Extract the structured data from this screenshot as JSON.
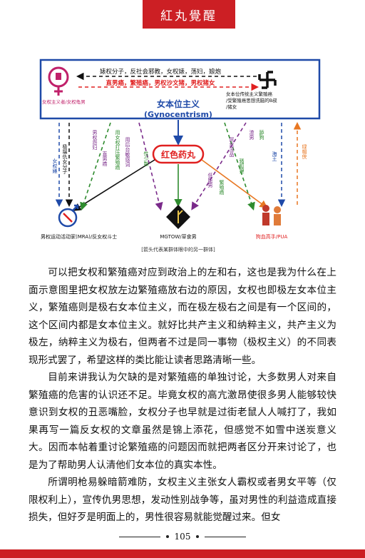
{
  "header": {
    "title": "紅丸覺醒"
  },
  "diagram": {
    "top_label": "婊权分子，反社会邪教，女权婊，荡妇，娘炮",
    "top_label2": "直男癌，繁殖癌，男权沙文猪，男权猪女",
    "left_tag": "女权主义者/女权龟男",
    "right_tag": [
      "女本位传统主义繁殖癌",
      "/受繁殖癌思想洗脑的B叔",
      "/猪女"
    ],
    "center_title": "女本位主义",
    "center_subtitle": "(Gynocentrism)",
    "red_pill": "红色药丸",
    "left_v1": "女权婊",
    "left_v2": "极端仇女分子",
    "left_v3": "男权怨妇",
    "left_v4": "直男癌",
    "mid_v1": "用女权打压繁殖癌",
    "mid_v2": "用后台敏感词",
    "mid_v3": "性少数",
    "right_v1": "低能男",
    "right_v2": "繁殖癌",
    "right_v3": "屌丝没品",
    "right_v4": "骚狐狸",
    "right_v5": "渣男",
    "right_v6": "舔狗",
    "far_right_v1": "海王",
    "far_right_v2": "绿帽侠",
    "node_left": "男权运动活动家(MRA)/反女权斗士",
    "node_mid": "MGTOW/草食男",
    "node_right": "狗血高手/PUA",
    "caption": "[箭头代表某群体眼中的另一群体]"
  },
  "paragraphs": [
    "可以把女权和繁殖癌对应到政治上的左和右，这也是我为什么在上面示意图里把女权放左边繁殖癌放右边的原因，女权也即极左女本位主义，繁殖癌则是极右女本位主义，而在极左极右之间是有一个区间的，这个区间内都是女本位主义。就好比共产主义和纳粹主义，共产主义为极左，纳粹主义为极右，但两者不过是同一事物（极权主义）的不同表现形式罢了，希望这样的类比能让读者思路清晰一些。",
    "目前来讲我认为欠缺的是对繁殖癌的单独讨论，大多数男人对来自繁殖癌的危害的认识还不足。毕竟女权的高亢激昂使很多男人能够较快意识到女权的丑恶嘴脸，女权分子也早就是过街老鼠人人喊打了，我如果再写一篇反女权的文章虽然是锦上添花，但感觉不如雪中送炭意义大。因而本帖着重讨论繁殖癌的问题因而就把两者区分开来讨论了，也是为了帮助男人认清他们女本位的真实本性。",
    "所谓明枪易躲暗箭难防，女权主义主张女人霸权或者男女平等（仅限权利上），宣传仇男思想，发动性别战争等，虽对男性的利益造成直接损失，但好歹是明面上的，男性很容易就能觉醒过来。但女"
  ],
  "footer": {
    "page_number": "105"
  },
  "colors": {
    "brand_red": "#cc1f24",
    "diagram_blue": "#1f4aa8",
    "pill_red": "#e02020",
    "green": "#2e8b2e",
    "purple": "#7a2a8a",
    "orange": "#e87722"
  }
}
